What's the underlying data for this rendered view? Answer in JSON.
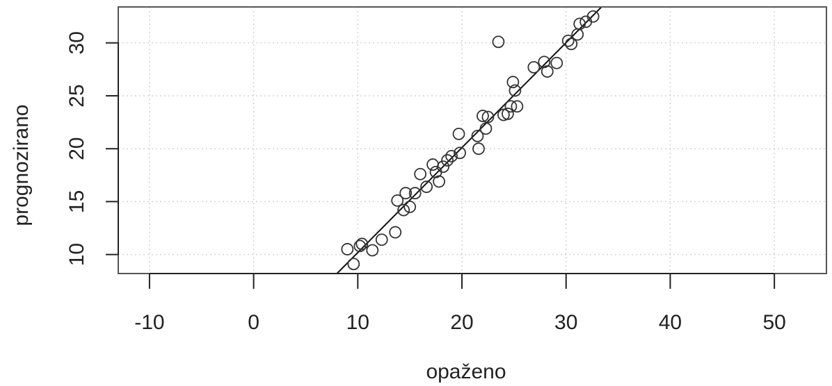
{
  "chart_data": {
    "type": "scatter",
    "title": "",
    "xlabel": "opaženo",
    "ylabel": "prognozirano",
    "xlim": [
      -13,
      55
    ],
    "ylim": [
      8.2,
      33.4
    ],
    "x_ticks": [
      -10,
      0,
      10,
      20,
      30,
      40,
      50
    ],
    "y_ticks": [
      10,
      15,
      20,
      25,
      30
    ],
    "grid": true,
    "fit_line": {
      "x1": 8,
      "y1": 8.2,
      "x2": 33.4,
      "y2": 33.4
    },
    "series": [
      {
        "points": [
          {
            "x": 9.0,
            "y": 10.5
          },
          {
            "x": 9.6,
            "y": 9.1
          },
          {
            "x": 10.2,
            "y": 10.8
          },
          {
            "x": 10.4,
            "y": 11.0
          },
          {
            "x": 11.4,
            "y": 10.4
          },
          {
            "x": 12.3,
            "y": 11.4
          },
          {
            "x": 13.6,
            "y": 12.1
          },
          {
            "x": 13.8,
            "y": 15.1
          },
          {
            "x": 14.4,
            "y": 14.2
          },
          {
            "x": 14.6,
            "y": 15.8
          },
          {
            "x": 15.0,
            "y": 14.5
          },
          {
            "x": 15.5,
            "y": 15.8
          },
          {
            "x": 16.0,
            "y": 17.6
          },
          {
            "x": 16.6,
            "y": 16.4
          },
          {
            "x": 17.2,
            "y": 18.5
          },
          {
            "x": 17.5,
            "y": 17.8
          },
          {
            "x": 17.8,
            "y": 16.9
          },
          {
            "x": 18.2,
            "y": 18.3
          },
          {
            "x": 18.6,
            "y": 18.9
          },
          {
            "x": 19.0,
            "y": 19.3
          },
          {
            "x": 19.7,
            "y": 21.4
          },
          {
            "x": 19.8,
            "y": 19.6
          },
          {
            "x": 21.5,
            "y": 21.2
          },
          {
            "x": 21.6,
            "y": 20.0
          },
          {
            "x": 22.0,
            "y": 23.1
          },
          {
            "x": 22.3,
            "y": 21.9
          },
          {
            "x": 22.5,
            "y": 23.0
          },
          {
            "x": 23.5,
            "y": 30.1
          },
          {
            "x": 24.0,
            "y": 23.2
          },
          {
            "x": 24.4,
            "y": 23.3
          },
          {
            "x": 24.7,
            "y": 24.0
          },
          {
            "x": 24.9,
            "y": 26.3
          },
          {
            "x": 25.1,
            "y": 25.5
          },
          {
            "x": 25.3,
            "y": 24.0
          },
          {
            "x": 26.9,
            "y": 27.7
          },
          {
            "x": 27.9,
            "y": 28.2
          },
          {
            "x": 28.2,
            "y": 27.3
          },
          {
            "x": 29.1,
            "y": 28.1
          },
          {
            "x": 30.2,
            "y": 30.2
          },
          {
            "x": 30.5,
            "y": 29.9
          },
          {
            "x": 31.1,
            "y": 30.8
          },
          {
            "x": 31.3,
            "y": 31.8
          },
          {
            "x": 31.9,
            "y": 32.0
          },
          {
            "x": 32.6,
            "y": 32.5
          }
        ]
      }
    ]
  }
}
